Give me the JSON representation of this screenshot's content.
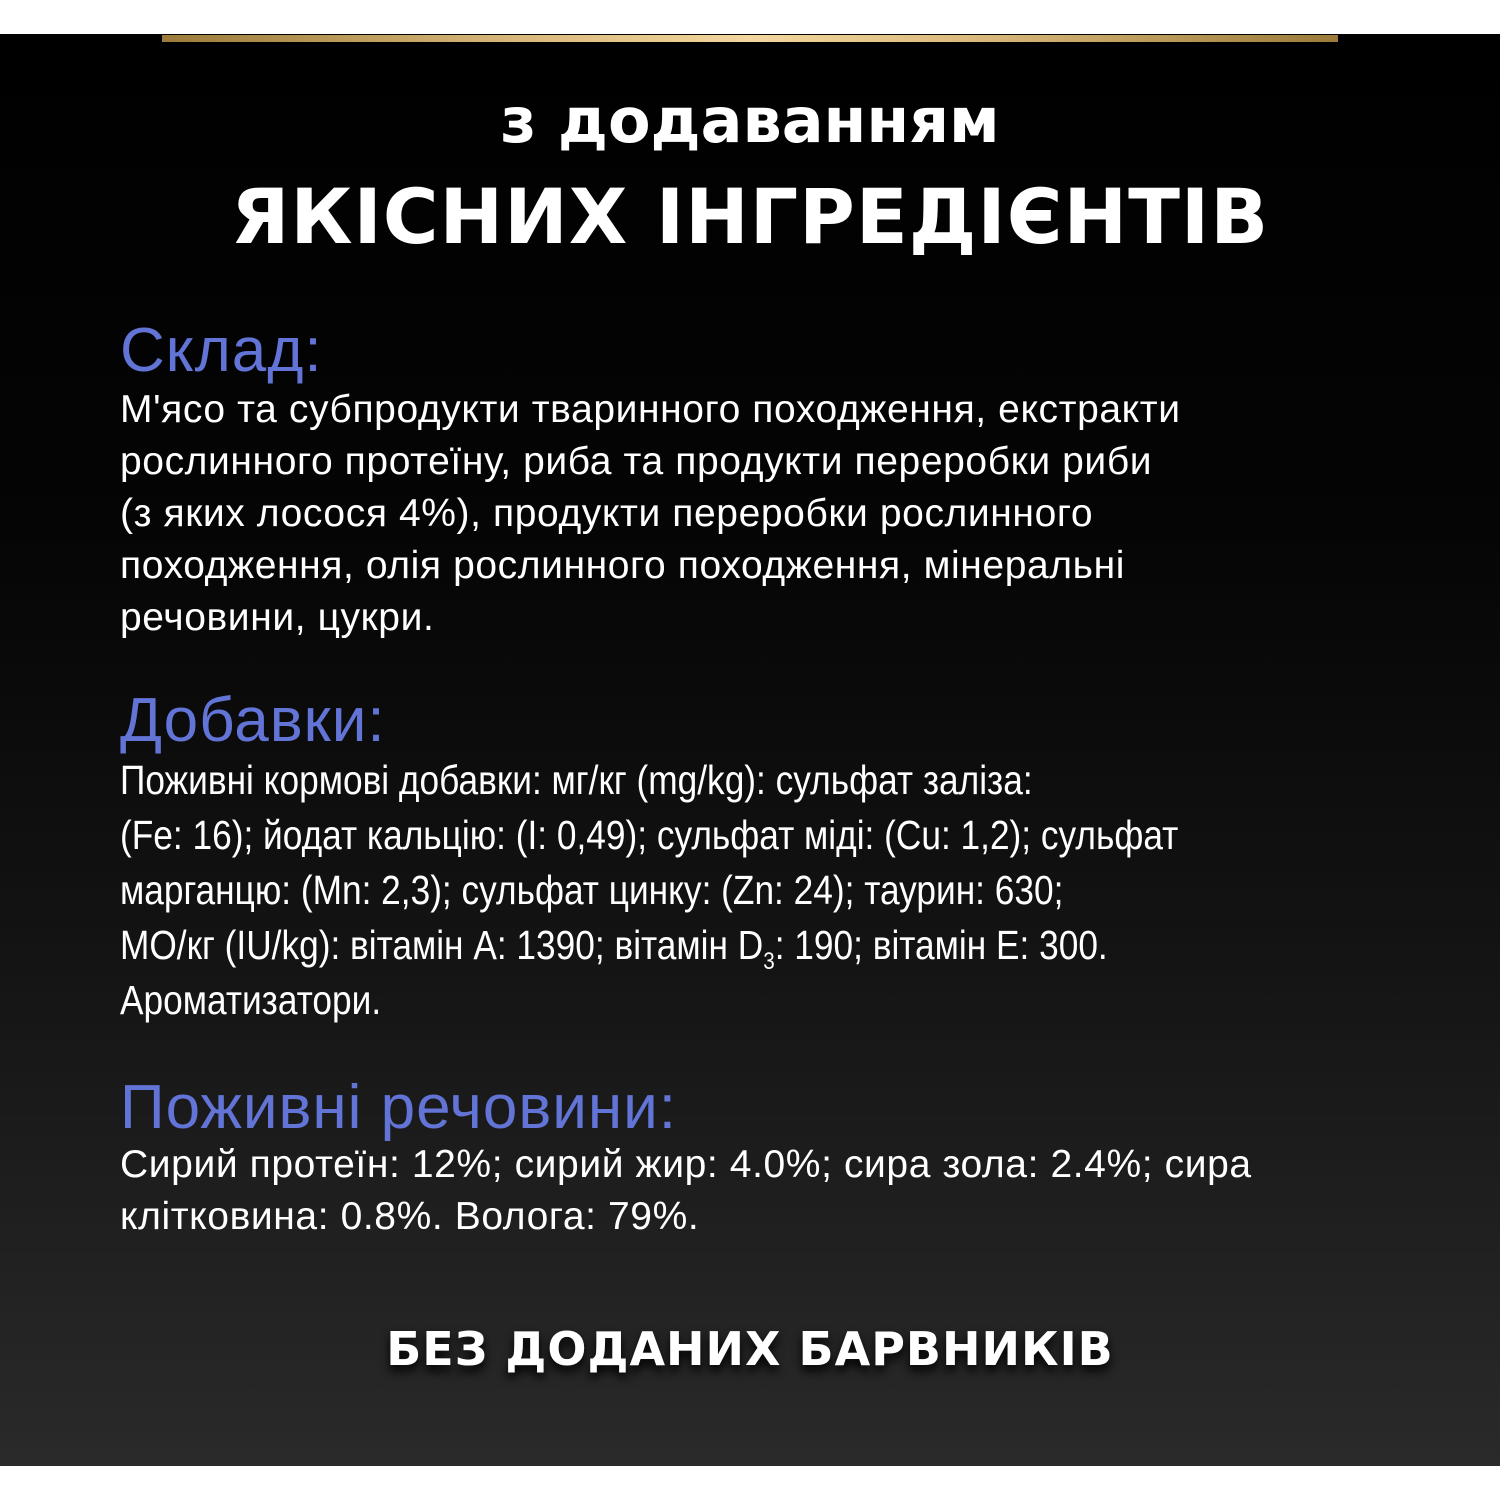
{
  "colors": {
    "heading": "#6274d6",
    "panel": "#000000",
    "gold": "#e5c68a"
  },
  "title": {
    "line1": "з додаванням",
    "line2": "ЯКІСНИХ ІНГРЕДІЄНТІВ"
  },
  "composition": {
    "heading": "Склад:",
    "lines": [
      "М'ясо та субпродукти тваринного походження, екстракти",
      "рослинного протеїну, риба та продукти переробки риби",
      "(з яких лосося 4%), продукти переробки рослинного",
      "походження, олія рослинного походження, мінеральні",
      "речовини, цукри."
    ]
  },
  "additives": {
    "heading": "Добавки:",
    "lines": [
      "Поживні кормові добавки: мг/кг (mg/kg): сульфат заліза:",
      "(Fe: 16); йодат кальцію: (I: 0,49); сульфат міді: (Cu: 1,2); сульфат",
      "марганцю: (Mn: 2,3); сульфат цинку: (Zn: 24); таурин: 630;"
    ],
    "line4_a": "МО/кг (IU/kg): вітамін А: 1390; вітамін D",
    "line4_sub": "3",
    "line4_b": ": 190; вітамін Е: 300.",
    "line5": "Ароматизатори."
  },
  "nutrients": {
    "heading": "Поживні речовини:",
    "lines": [
      "Сирий протеїн: 12%; сирий жир: 4.0%; сира зола: 2.4%; сира",
      "клітковина: 0.8%. Волога: 79%."
    ]
  },
  "footer": "БЕЗ ДОДАНИХ БАРВНИКІВ"
}
